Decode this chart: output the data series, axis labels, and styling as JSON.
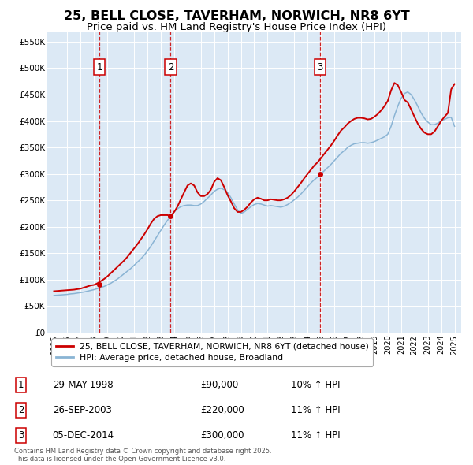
{
  "title": "25, BELL CLOSE, TAVERHAM, NORWICH, NR8 6YT",
  "subtitle": "Price paid vs. HM Land Registry's House Price Index (HPI)",
  "title_fontsize": 11.5,
  "subtitle_fontsize": 9.5,
  "background_color": "#ffffff",
  "plot_bg_color": "#dce9f5",
  "grid_color": "#ffffff",
  "red_line_color": "#cc0000",
  "blue_line_color": "#8ab4d4",
  "dashed_line_color": "#cc0000",
  "ylim": [
    0,
    570000
  ],
  "yticks": [
    0,
    50000,
    100000,
    150000,
    200000,
    250000,
    300000,
    350000,
    400000,
    450000,
    500000,
    550000
  ],
  "ytick_labels": [
    "£0",
    "£50K",
    "£100K",
    "£150K",
    "£200K",
    "£250K",
    "£300K",
    "£350K",
    "£400K",
    "£450K",
    "£500K",
    "£550K"
  ],
  "xlim_start": 1994.5,
  "xlim_end": 2025.5,
  "xtick_years": [
    1995,
    1996,
    1997,
    1998,
    1999,
    2000,
    2001,
    2002,
    2003,
    2004,
    2005,
    2006,
    2007,
    2008,
    2009,
    2010,
    2011,
    2012,
    2013,
    2014,
    2015,
    2016,
    2017,
    2018,
    2019,
    2020,
    2021,
    2022,
    2023,
    2024,
    2025
  ],
  "legend_label_red": "25, BELL CLOSE, TAVERHAM, NORWICH, NR8 6YT (detached house)",
  "legend_label_blue": "HPI: Average price, detached house, Broadland",
  "sales": [
    {
      "num": 1,
      "date": "29-MAY-1998",
      "year": 1998.41,
      "price": 90000,
      "pct": "10%",
      "dir": "↑"
    },
    {
      "num": 2,
      "date": "26-SEP-2003",
      "year": 2003.74,
      "price": 220000,
      "pct": "11%",
      "dir": "↑"
    },
    {
      "num": 3,
      "date": "05-DEC-2014",
      "year": 2014.92,
      "price": 300000,
      "pct": "11%",
      "dir": "↑"
    }
  ],
  "footer": "Contains HM Land Registry data © Crown copyright and database right 2025.\nThis data is licensed under the Open Government Licence v3.0.",
  "hpi_years": [
    1995.0,
    1995.25,
    1995.5,
    1995.75,
    1996.0,
    1996.25,
    1996.5,
    1996.75,
    1997.0,
    1997.25,
    1997.5,
    1997.75,
    1998.0,
    1998.25,
    1998.5,
    1998.75,
    1999.0,
    1999.25,
    1999.5,
    1999.75,
    2000.0,
    2000.25,
    2000.5,
    2000.75,
    2001.0,
    2001.25,
    2001.5,
    2001.75,
    2002.0,
    2002.25,
    2002.5,
    2002.75,
    2003.0,
    2003.25,
    2003.5,
    2003.75,
    2004.0,
    2004.25,
    2004.5,
    2004.75,
    2005.0,
    2005.25,
    2005.5,
    2005.75,
    2006.0,
    2006.25,
    2006.5,
    2006.75,
    2007.0,
    2007.25,
    2007.5,
    2007.75,
    2008.0,
    2008.25,
    2008.5,
    2008.75,
    2009.0,
    2009.25,
    2009.5,
    2009.75,
    2010.0,
    2010.25,
    2010.5,
    2010.75,
    2011.0,
    2011.25,
    2011.5,
    2011.75,
    2012.0,
    2012.25,
    2012.5,
    2012.75,
    2013.0,
    2013.25,
    2013.5,
    2013.75,
    2014.0,
    2014.25,
    2014.5,
    2014.75,
    2015.0,
    2015.25,
    2015.5,
    2015.75,
    2016.0,
    2016.25,
    2016.5,
    2016.75,
    2017.0,
    2017.25,
    2017.5,
    2017.75,
    2018.0,
    2018.25,
    2018.5,
    2018.75,
    2019.0,
    2019.25,
    2019.5,
    2019.75,
    2020.0,
    2020.25,
    2020.5,
    2020.75,
    2021.0,
    2021.25,
    2021.5,
    2021.75,
    2022.0,
    2022.25,
    2022.5,
    2022.75,
    2023.0,
    2023.25,
    2023.5,
    2023.75,
    2024.0,
    2024.25,
    2024.5,
    2024.75,
    2025.0
  ],
  "hpi_values": [
    70000,
    70500,
    71000,
    71500,
    72000,
    73000,
    73500,
    74500,
    75500,
    76500,
    78000,
    79500,
    81000,
    83000,
    85000,
    87000,
    90000,
    93000,
    97000,
    101000,
    106000,
    111000,
    116000,
    121000,
    127000,
    133000,
    139000,
    146000,
    154000,
    163000,
    173000,
    183000,
    193000,
    203000,
    212000,
    220000,
    228000,
    234000,
    238000,
    240000,
    241000,
    241000,
    240000,
    240000,
    243000,
    248000,
    254000,
    260000,
    267000,
    271000,
    273000,
    270000,
    265000,
    255000,
    243000,
    232000,
    225000,
    228000,
    233000,
    238000,
    242000,
    244000,
    243000,
    241000,
    239000,
    240000,
    239000,
    238000,
    237000,
    239000,
    242000,
    246000,
    251000,
    256000,
    262000,
    269000,
    276000,
    283000,
    289000,
    294000,
    300000,
    306000,
    312000,
    318000,
    325000,
    332000,
    339000,
    344000,
    350000,
    354000,
    357000,
    358000,
    359000,
    359000,
    358000,
    359000,
    361000,
    364000,
    367000,
    370000,
    375000,
    390000,
    410000,
    428000,
    443000,
    452000,
    455000,
    450000,
    440000,
    428000,
    415000,
    405000,
    398000,
    393000,
    393000,
    396000,
    400000,
    403000,
    406000,
    407000,
    390000
  ],
  "red_years": [
    1995.0,
    1995.25,
    1995.5,
    1995.75,
    1996.0,
    1996.25,
    1996.5,
    1996.75,
    1997.0,
    1997.25,
    1997.5,
    1997.75,
    1998.0,
    1998.25,
    1998.5,
    1998.75,
    1999.0,
    1999.25,
    1999.5,
    1999.75,
    2000.0,
    2000.25,
    2000.5,
    2000.75,
    2001.0,
    2001.25,
    2001.5,
    2001.75,
    2002.0,
    2002.25,
    2002.5,
    2002.75,
    2003.0,
    2003.25,
    2003.5,
    2003.75,
    2004.0,
    2004.25,
    2004.5,
    2004.75,
    2005.0,
    2005.25,
    2005.5,
    2005.75,
    2006.0,
    2006.25,
    2006.5,
    2006.75,
    2007.0,
    2007.25,
    2007.5,
    2007.75,
    2008.0,
    2008.25,
    2008.5,
    2008.75,
    2009.0,
    2009.25,
    2009.5,
    2009.75,
    2010.0,
    2010.25,
    2010.5,
    2010.75,
    2011.0,
    2011.25,
    2011.5,
    2011.75,
    2012.0,
    2012.25,
    2012.5,
    2012.75,
    2013.0,
    2013.25,
    2013.5,
    2013.75,
    2014.0,
    2014.25,
    2014.5,
    2014.75,
    2015.0,
    2015.25,
    2015.5,
    2015.75,
    2016.0,
    2016.25,
    2016.5,
    2016.75,
    2017.0,
    2017.25,
    2017.5,
    2017.75,
    2018.0,
    2018.25,
    2018.5,
    2018.75,
    2019.0,
    2019.25,
    2019.5,
    2019.75,
    2020.0,
    2020.25,
    2020.5,
    2020.75,
    2021.0,
    2021.25,
    2021.5,
    2021.75,
    2022.0,
    2022.25,
    2022.5,
    2022.75,
    2023.0,
    2023.25,
    2023.5,
    2023.75,
    2024.0,
    2024.25,
    2024.5,
    2024.75,
    2025.0
  ],
  "red_values": [
    78000,
    78500,
    79000,
    79500,
    80000,
    80500,
    81000,
    82000,
    83000,
    85000,
    87000,
    89000,
    90000,
    93000,
    97000,
    101000,
    106000,
    112000,
    118000,
    124000,
    130000,
    136000,
    143000,
    151000,
    159000,
    167000,
    176000,
    185000,
    195000,
    206000,
    215000,
    220000,
    222000,
    222000,
    222000,
    220000,
    228000,
    238000,
    252000,
    265000,
    278000,
    282000,
    278000,
    265000,
    258000,
    258000,
    262000,
    270000,
    285000,
    292000,
    288000,
    275000,
    260000,
    248000,
    235000,
    228000,
    228000,
    232000,
    238000,
    246000,
    252000,
    255000,
    253000,
    250000,
    250000,
    252000,
    251000,
    250000,
    250000,
    252000,
    255000,
    260000,
    267000,
    275000,
    283000,
    292000,
    300000,
    308000,
    316000,
    322000,
    330000,
    338000,
    346000,
    354000,
    363000,
    373000,
    382000,
    388000,
    395000,
    400000,
    404000,
    406000,
    406000,
    405000,
    403000,
    404000,
    408000,
    413000,
    420000,
    428000,
    438000,
    458000,
    472000,
    468000,
    455000,
    440000,
    435000,
    422000,
    408000,
    395000,
    385000,
    378000,
    375000,
    375000,
    380000,
    390000,
    400000,
    408000,
    415000,
    460000,
    470000
  ]
}
